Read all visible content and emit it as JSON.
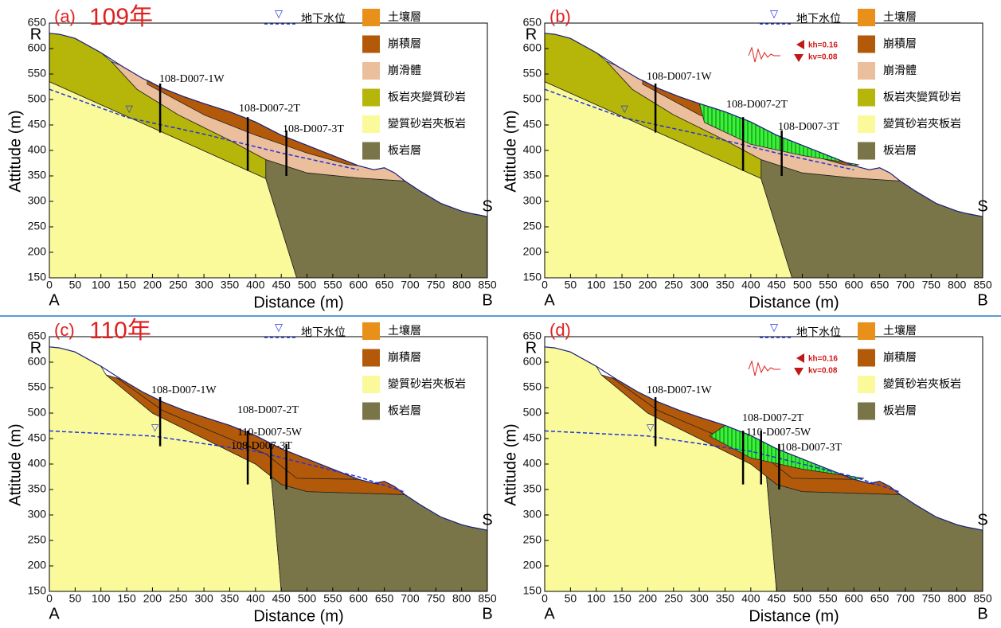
{
  "panels": [
    {
      "label": "(a)",
      "year": "109年",
      "x_label": "Distance (m)",
      "y_label": "Attitude (m)",
      "x_ticks": [
        0,
        50,
        100,
        150,
        200,
        250,
        300,
        350,
        400,
        450,
        500,
        550,
        600,
        650,
        700,
        750,
        800,
        850
      ],
      "y_ticks": [
        150,
        200,
        250,
        300,
        350,
        400,
        450,
        500,
        550,
        600,
        650
      ],
      "corners": [
        "R",
        "S",
        "A",
        "B"
      ],
      "water_table": "地下水位",
      "legend": [
        {
          "name": "土壤層",
          "color": "#e8901a"
        },
        {
          "name": "崩積層",
          "color": "#b35a0a"
        },
        {
          "name": "崩滑體",
          "color": "#ebbf9c"
        },
        {
          "name": "板岩夾變質砂岩",
          "color": "#b5b50a"
        },
        {
          "name": "變質砂岩夾板岩",
          "color": "#fafa9a"
        },
        {
          "name": "板岩層",
          "color": "#7a7548"
        }
      ],
      "boreholes": [
        "108-D007-1W",
        "108-D007-2T",
        "108-D007-3T"
      ]
    },
    {
      "label": "(b)",
      "x_label": "Distance (m)",
      "y_label": "Attitude (m)",
      "x_ticks": [
        0,
        50,
        100,
        150,
        200,
        250,
        300,
        350,
        400,
        450,
        500,
        550,
        600,
        650,
        700,
        750,
        800,
        850
      ],
      "y_ticks": [
        150,
        200,
        250,
        300,
        350,
        400,
        450,
        500,
        550,
        600,
        650
      ],
      "corners": [
        "R",
        "S",
        "A",
        "B"
      ],
      "water_table": "地下水位",
      "seismic": [
        "kh=0.16",
        "kv=0.08"
      ],
      "legend": [
        {
          "name": "土壤層",
          "color": "#e8901a"
        },
        {
          "name": "崩積層",
          "color": "#b35a0a"
        },
        {
          "name": "崩滑體",
          "color": "#ebbf9c"
        },
        {
          "name": "板岩夾變質砂岩",
          "color": "#b5b50a"
        },
        {
          "name": "變質砂岩夾板岩",
          "color": "#fafa9a"
        },
        {
          "name": "板岩層",
          "color": "#7a7548"
        }
      ],
      "boreholes": [
        "108-D007-1W",
        "108-D007-2T",
        "108-D007-3T"
      ]
    },
    {
      "label": "(c)",
      "year": "110年",
      "x_label": "Distance (m)",
      "y_label": "Attitude (m)",
      "x_ticks": [
        0,
        50,
        100,
        150,
        200,
        250,
        300,
        350,
        400,
        450,
        500,
        550,
        600,
        650,
        700,
        750,
        800,
        850
      ],
      "y_ticks": [
        150,
        200,
        250,
        300,
        350,
        400,
        450,
        500,
        550,
        600,
        650
      ],
      "corners": [
        "R",
        "S",
        "A",
        "B"
      ],
      "water_table": "地下水位",
      "legend": [
        {
          "name": "土壤層",
          "color": "#e8901a"
        },
        {
          "name": "崩積層",
          "color": "#b35a0a"
        },
        {
          "name": "變質砂岩夾板岩",
          "color": "#fafa9a"
        },
        {
          "name": "板岩層",
          "color": "#7a7548"
        }
      ],
      "boreholes": [
        "108-D007-1W",
        "108-D007-2T",
        "110-D007-5W",
        "108-D007-3T"
      ]
    },
    {
      "label": "(d)",
      "x_label": "Distance (m)",
      "y_label": "Attitude (m)",
      "x_ticks": [
        0,
        50,
        100,
        150,
        200,
        250,
        300,
        350,
        400,
        450,
        500,
        550,
        600,
        650,
        700,
        750,
        800,
        850
      ],
      "y_ticks": [
        150,
        200,
        250,
        300,
        350,
        400,
        450,
        500,
        550,
        600,
        650
      ],
      "corners": [
        "R",
        "S",
        "A",
        "B"
      ],
      "water_table": "地下水位",
      "seismic": [
        "kh=0.16",
        "kv=0.08"
      ],
      "legend": [
        {
          "name": "土壤層",
          "color": "#e8901a"
        },
        {
          "name": "崩積層",
          "color": "#b35a0a"
        },
        {
          "name": "變質砂岩夾板岩",
          "color": "#fafa9a"
        },
        {
          "name": "板岩層",
          "color": "#7a7548"
        }
      ],
      "boreholes": [
        "108-D007-1W",
        "108-D007-2T",
        "110-D007-5W",
        "108-D007-3T"
      ]
    }
  ]
}
